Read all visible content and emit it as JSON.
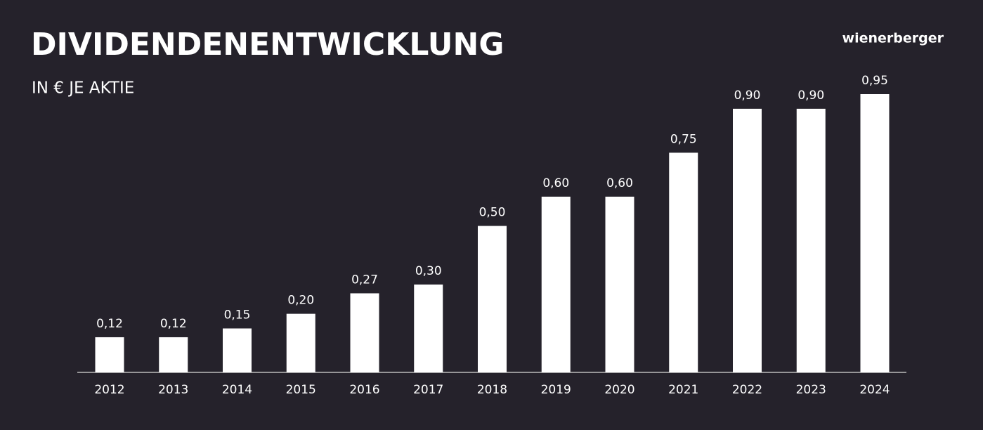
{
  "brand": "wienerberger",
  "chart_data": {
    "type": "bar",
    "title": "DIVIDENDENENTWICKLUNG",
    "subtitle": "IN € JE AKTIE",
    "categories": [
      "2012",
      "2013",
      "2014",
      "2015",
      "2016",
      "2017",
      "2018",
      "2019",
      "2020",
      "2021",
      "2022",
      "2023",
      "2024"
    ],
    "values": [
      0.12,
      0.12,
      0.15,
      0.2,
      0.27,
      0.3,
      0.5,
      0.6,
      0.6,
      0.75,
      0.9,
      0.9,
      0.95
    ],
    "value_labels": [
      "0,12",
      "0,12",
      "0,15",
      "0,20",
      "0,27",
      "0,30",
      "0,50",
      "0,60",
      "0,60",
      "0,75",
      "0,90",
      "0,90",
      "0,95"
    ],
    "color": "#ffffff"
  }
}
